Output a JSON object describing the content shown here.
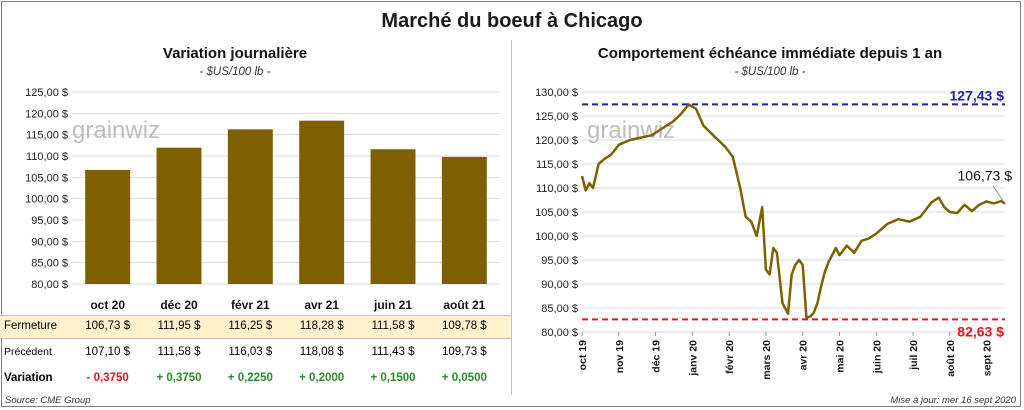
{
  "title": "Marché du boeuf à Chicago",
  "left_chart": {
    "title": "Variation  journalière",
    "unit": "- $US/100 lb -"
  },
  "right_chart": {
    "title": "Comportement  échéance immédiate depuis 1 an",
    "unit": "- $US/100 lb -",
    "max_label": "127,43 $",
    "min_label": "82,63 $",
    "last_label": "106,73 $"
  },
  "watermark": "grainwiz",
  "table": {
    "rows": [
      {
        "label": "Fermeture",
        "values": [
          "106,73  $",
          "111,95  $",
          "116,25  $",
          "118,28  $",
          "111,58  $",
          "109,78  $"
        ]
      },
      {
        "label": "Précédent",
        "values": [
          "107,10  $",
          "111,58  $",
          "116,03  $",
          "118,08  $",
          "111,43  $",
          "109,73  $"
        ]
      },
      {
        "label": "Variation",
        "values": [
          "- 0,3750",
          "+ 0,3750",
          "+ 0,2250",
          "+ 0,2000",
          "+ 0,1500",
          "+ 0,0500"
        ]
      }
    ]
  },
  "colors": {
    "bar": "#7f6000",
    "line": "#7f6000",
    "max_line": "#1f1fa6",
    "min_line": "#e8141a",
    "fermeture_bg": "#fff2cc",
    "negative": "#e8141a",
    "positive": "#2a8a2a"
  },
  "footer": {
    "source": "Source: CME Group",
    "updated": "Mise à jour: mer 16 sept 2020"
  },
  "chart_data": [
    {
      "type": "bar",
      "title": "Variation  journalière",
      "categories": [
        "oct 20",
        "déc 20",
        "févr 21",
        "avr 21",
        "juin 21",
        "août 21"
      ],
      "values": [
        106.73,
        111.95,
        116.25,
        118.28,
        111.58,
        109.78
      ],
      "ylim": [
        80,
        125
      ],
      "yticks": [
        80,
        85,
        90,
        95,
        100,
        105,
        110,
        115,
        120,
        125
      ],
      "ytick_labels": [
        "80,00 $",
        "85,00 $",
        "90,00 $",
        "95,00 $",
        "100,00 $",
        "105,00 $",
        "110,00 $",
        "115,00 $",
        "120,00 $",
        "125,00 $"
      ],
      "grid": true
    },
    {
      "type": "line",
      "title": "Comportement  échéance immédiate depuis 1 an",
      "ylim": [
        80,
        130
      ],
      "yticks": [
        80,
        85,
        90,
        95,
        100,
        105,
        110,
        115,
        120,
        125,
        130
      ],
      "ytick_labels": [
        "80,00 $",
        "85,00 $",
        "90,00 $",
        "95,00 $",
        "100,00 $",
        "105,00 $",
        "110,00 $",
        "115,00 $",
        "120,00 $",
        "125,00 $",
        "130,00 $"
      ],
      "xtick_labels": [
        "oct 19",
        "nov 19",
        "déc 19",
        "janv 20",
        "févr 20",
        "mars 20",
        "avr 20",
        "mai 20",
        "juin 20",
        "juil 20",
        "août 20",
        "sept 20"
      ],
      "x_range": [
        0,
        11.5
      ],
      "x": [
        0,
        0.1,
        0.2,
        0.3,
        0.45,
        0.6,
        0.8,
        1.0,
        1.3,
        1.6,
        1.9,
        2.2,
        2.5,
        2.7,
        2.9,
        3.1,
        3.3,
        3.5,
        3.7,
        3.9,
        4.1,
        4.3,
        4.45,
        4.6,
        4.75,
        4.9,
        5.0,
        5.1,
        5.2,
        5.3,
        5.45,
        5.6,
        5.7,
        5.8,
        5.9,
        6.0,
        6.1,
        6.2,
        6.3,
        6.4,
        6.5,
        6.6,
        6.7,
        6.8,
        6.9,
        7.0,
        7.2,
        7.4,
        7.6,
        7.8,
        8.0,
        8.3,
        8.6,
        8.9,
        9.2,
        9.5,
        9.7,
        9.85,
        10.0,
        10.2,
        10.4,
        10.6,
        10.8,
        11.0,
        11.2,
        11.4,
        11.5
      ],
      "y": [
        112.5,
        109.5,
        111,
        110,
        115,
        116,
        117,
        119,
        120,
        120.5,
        121,
        122.5,
        124,
        125.5,
        127.4,
        126.5,
        123,
        121.5,
        120,
        118.5,
        116.5,
        110,
        104,
        103,
        100,
        106,
        93,
        92,
        97.5,
        96.5,
        86,
        83.8,
        92,
        94,
        95,
        94,
        83,
        83.2,
        84,
        86,
        89.5,
        92.5,
        94.5,
        96,
        97.5,
        96,
        98,
        96.5,
        99,
        99.5,
        100.5,
        102.5,
        103.5,
        103,
        104,
        107,
        108,
        106,
        105,
        104.8,
        106.5,
        105.2,
        106.5,
        107.2,
        106.8,
        107.3,
        106.73
      ],
      "hlines": [
        {
          "value": 127.43,
          "label": "127,43 $"
        },
        {
          "value": 82.63,
          "label": "82,63 $"
        }
      ],
      "last_value": 106.73,
      "grid": true
    }
  ]
}
